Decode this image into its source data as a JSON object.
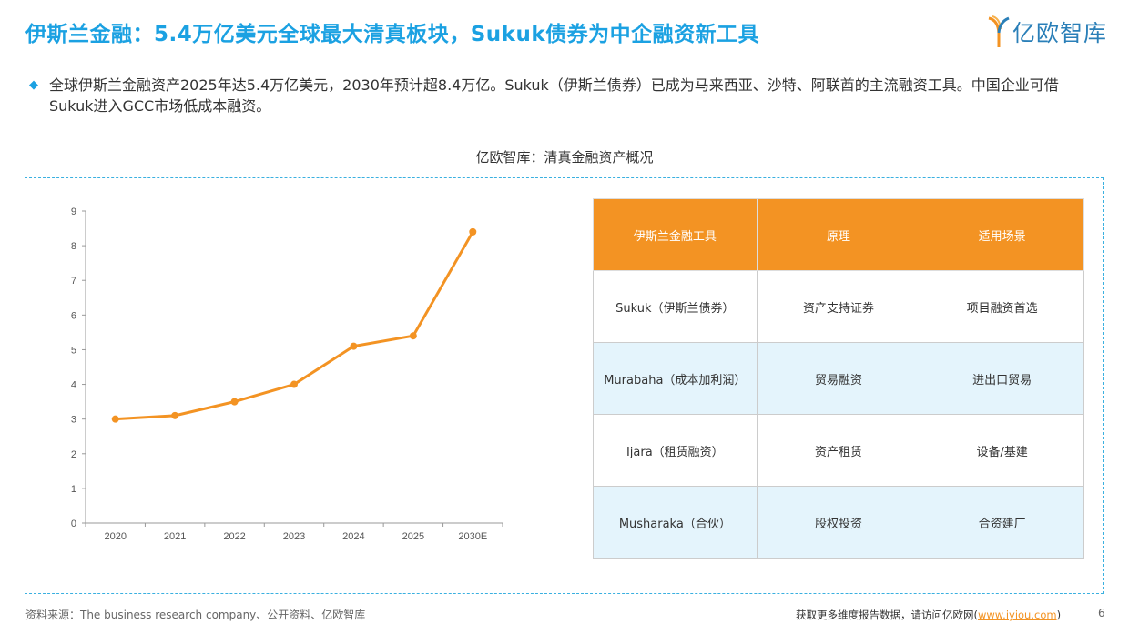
{
  "header": {
    "title": "伊斯兰金融：5.4万亿美元全球最大清真板块，Sukuk债券为中企融资新工具",
    "logo_text": "亿欧智库"
  },
  "summary": "全球伊斯兰金融资产2025年达5.4万亿美元，2030年预计超8.4万亿。Sukuk（伊斯兰债券）已成为马来西亚、沙特、阿联酋的主流融资工具。中国企业可借Sukuk进入GCC市场低成本融资。",
  "figure_title": "亿欧智库：清真金融资产概况",
  "chart_data": {
    "type": "line",
    "categories": [
      "2020",
      "2021",
      "2022",
      "2023",
      "2024",
      "2025",
      "2030E"
    ],
    "values": [
      3.0,
      3.1,
      3.5,
      4.0,
      5.1,
      5.4,
      8.4
    ],
    "ylim": [
      0,
      9
    ],
    "yticks": [
      0,
      1,
      2,
      3,
      4,
      5,
      6,
      7,
      8,
      9
    ],
    "grid": false,
    "color": "#f39323"
  },
  "table": {
    "headers": [
      "伊斯兰金融工具",
      "原理",
      "适用场景"
    ],
    "rows": [
      [
        "Sukuk（伊斯兰债券）",
        "资产支持证券",
        "项目融资首选"
      ],
      [
        "Murabaha（成本加利润）",
        "贸易融资",
        "进出口贸易"
      ],
      [
        "Ijara（租赁融资）",
        "资产租赁",
        "设备/基建"
      ],
      [
        "Musharaka（合伙）",
        "股权投资",
        "合资建厂"
      ]
    ]
  },
  "footer": {
    "source": "资料来源：The business research company、公开资料、亿欧智库",
    "cta": "获取更多维度报告数据，请访问亿欧网(",
    "link": "www.iyiou.com",
    "cta_end": ")",
    "page": "6"
  },
  "colors": {
    "accent": "#1ba1e2",
    "orange": "#f39323",
    "row_alt": "#e4f4fc"
  }
}
